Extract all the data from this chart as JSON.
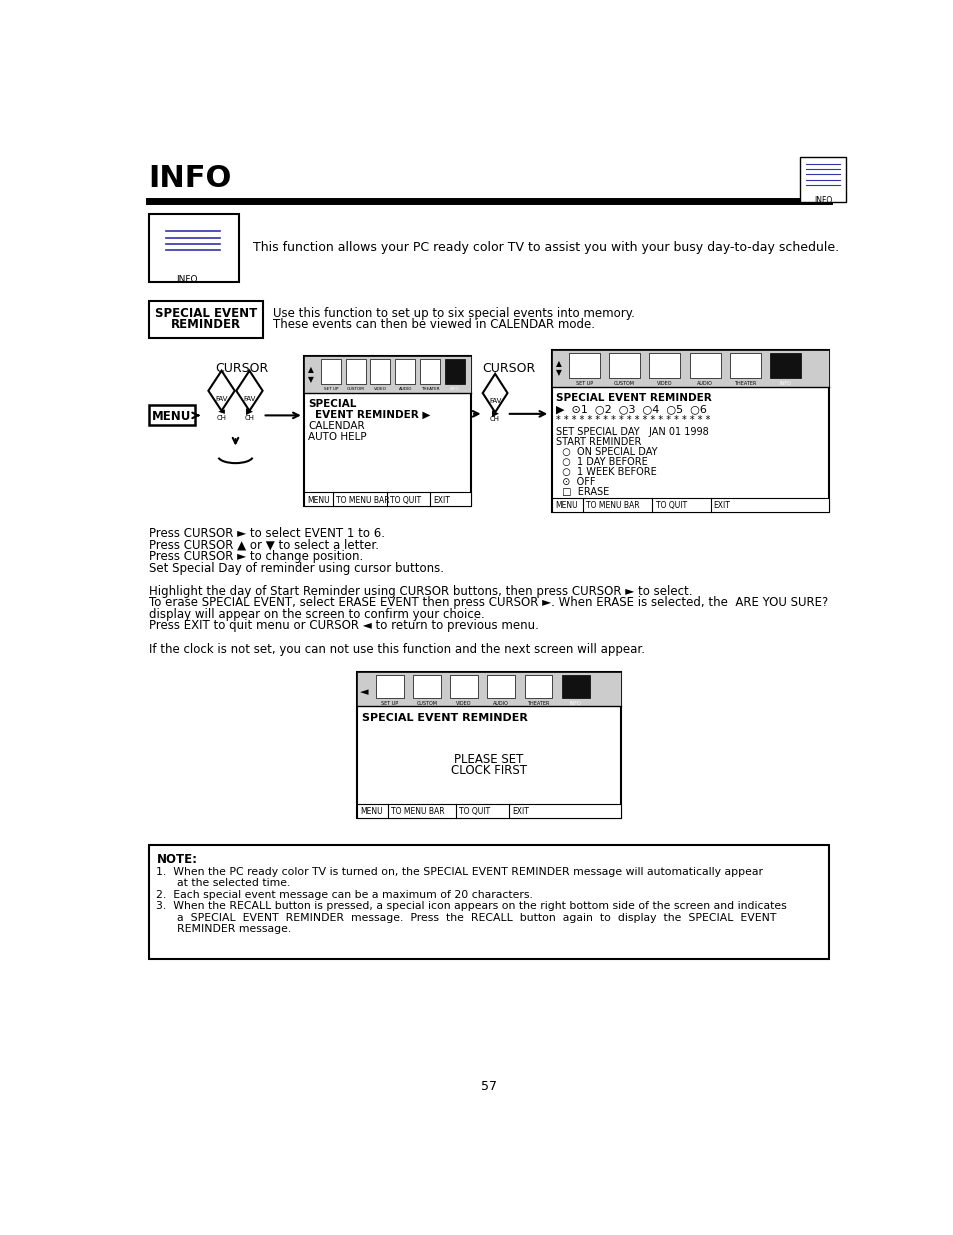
{
  "title": "INFO",
  "page_num": "57",
  "intro_text": "This function allows your PC ready color TV to assist you with your busy day-to-day schedule.",
  "special_event_desc1": "Use this function to set up to six special events into memory.",
  "special_event_desc2": "These events can then be viewed in CALENDAR mode.",
  "cursor_label": "CURSOR",
  "menu_label": "MENU",
  "body_texts": [
    "Press CURSOR ► to select EVENT 1 to 6.",
    "Press CURSOR ▲ or ▼ to select a letter.",
    "Press CURSOR ► to change position.",
    "Set Special Day of reminder using cursor buttons.",
    "",
    "Highlight the day of Start Reminder using CURSOR buttons, then press CURSOR ► to select.",
    "To erase SPECIAL EVENT, select ERASE EVENT then press CURSOR ►. When ERASE is selected, the  ARE YOU SURE?",
    "display will appear on the screen to confirm your choice.",
    "Press EXIT to quit menu or CURSOR ◄ to return to previous menu.",
    "",
    "If the clock is not set, you can not use this function and the next screen will appear."
  ],
  "screen3_title": "SPECIAL EVENT REMINDER",
  "note_items": [
    "1.  When the PC ready color TV is turned on, the SPECIAL EVENT REMINDER message will automatically appear",
    "      at the selected time.",
    "2.  Each special event message can be a maximum of 20 characters.",
    "3.  When the RECALL button is pressed, a special icon appears on the right bottom side of the screen and indicates",
    "      a  SPECIAL  EVENT  REMINDER  message.  Press  the  RECALL  button  again  to  display  the  SPECIAL  EVENT",
    "      REMINDER message."
  ],
  "bg_color": "#ffffff",
  "text_color": "#000000"
}
